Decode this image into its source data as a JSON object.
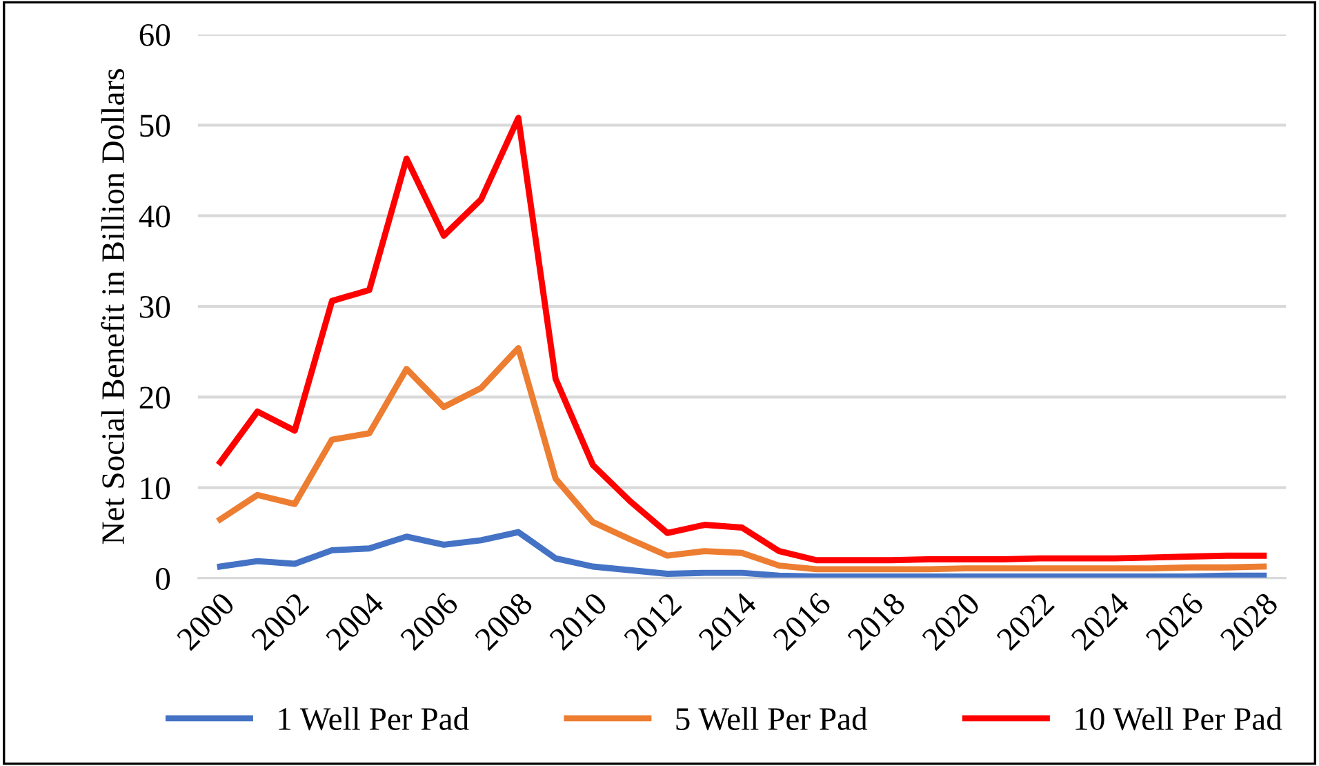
{
  "chart_data": {
    "type": "line",
    "ylabel": "Net Social Benefit in Billion Dollars",
    "categories": [
      "2000",
      null,
      "2002",
      null,
      "2004",
      null,
      "2006",
      null,
      "2008",
      null,
      "2010",
      null,
      "2012",
      null,
      "2014",
      null,
      "2016",
      null,
      "2018",
      null,
      "2020",
      null,
      "2022",
      null,
      "2024",
      null,
      "2026",
      null,
      "2028"
    ],
    "series": [
      {
        "name": "1 Well Per Pad",
        "color": "#4472c4",
        "values": [
          1.3,
          1.9,
          1.6,
          3.1,
          3.3,
          4.6,
          3.7,
          4.2,
          5.1,
          2.2,
          1.3,
          0.9,
          0.5,
          0.6,
          0.6,
          0.3,
          0.2,
          0.2,
          0.2,
          0.2,
          0.2,
          0.2,
          0.2,
          0.2,
          0.2,
          0.2,
          0.2,
          0.3,
          0.3
        ]
      },
      {
        "name": "5 Well Per Pad",
        "color": "#ed7d31",
        "values": [
          6.5,
          9.2,
          8.2,
          15.3,
          16.0,
          23.1,
          18.9,
          21.0,
          25.4,
          11.0,
          6.2,
          4.3,
          2.5,
          3.0,
          2.8,
          1.4,
          1.0,
          1.0,
          1.0,
          1.0,
          1.1,
          1.1,
          1.1,
          1.1,
          1.1,
          1.1,
          1.2,
          1.2,
          1.3
        ]
      },
      {
        "name": "10 Well Per Pad",
        "color": "#ff0000",
        "values": [
          12.8,
          18.4,
          16.3,
          30.6,
          31.8,
          46.3,
          37.8,
          41.8,
          50.8,
          22.0,
          12.5,
          8.5,
          5.0,
          5.9,
          5.6,
          3.0,
          2.0,
          2.0,
          2.0,
          2.1,
          2.1,
          2.1,
          2.2,
          2.2,
          2.2,
          2.3,
          2.4,
          2.5,
          2.5
        ]
      }
    ],
    "ylim": [
      0,
      60
    ],
    "yticks": [
      0,
      10,
      20,
      30,
      40,
      50,
      60
    ],
    "grid": "y",
    "legend": "bottom",
    "marker": "none",
    "line_style": "solid"
  }
}
